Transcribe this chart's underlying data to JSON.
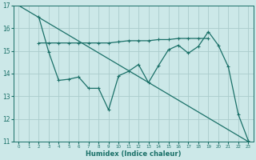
{
  "bg_color": "#cce8e8",
  "grid_color": "#aacccc",
  "line_color": "#1a7068",
  "line1_x": [
    0,
    23
  ],
  "line1_y": [
    17.0,
    11.0
  ],
  "line2_x": [
    2,
    3,
    4,
    5,
    6,
    7,
    8,
    9,
    10,
    11,
    12,
    13,
    14,
    15,
    16,
    17,
    18,
    19,
    20,
    21,
    22,
    23
  ],
  "line2_y": [
    16.5,
    14.95,
    13.7,
    13.75,
    13.85,
    13.35,
    13.35,
    12.4,
    13.9,
    14.1,
    14.4,
    13.6,
    14.35,
    15.05,
    15.25,
    14.9,
    15.2,
    15.85,
    15.25,
    14.3,
    12.2,
    11.05
  ],
  "line3_x": [
    2,
    3,
    4,
    5,
    6,
    7,
    8,
    9,
    10,
    11,
    12,
    13,
    14,
    15,
    16,
    17,
    18,
    19
  ],
  "line3_y": [
    15.35,
    15.35,
    15.35,
    15.35,
    15.35,
    15.35,
    15.35,
    15.35,
    15.4,
    15.45,
    15.45,
    15.45,
    15.5,
    15.5,
    15.55,
    15.55,
    15.55,
    15.55
  ],
  "xlabel": "Humidex (Indice chaleur)",
  "xlim": [
    -0.5,
    23.5
  ],
  "ylim": [
    11,
    17
  ],
  "yticks": [
    11,
    12,
    13,
    14,
    15,
    16,
    17
  ],
  "xticks": [
    0,
    1,
    2,
    3,
    4,
    5,
    6,
    7,
    8,
    9,
    10,
    11,
    12,
    13,
    14,
    15,
    16,
    17,
    18,
    19,
    20,
    21,
    22,
    23
  ]
}
